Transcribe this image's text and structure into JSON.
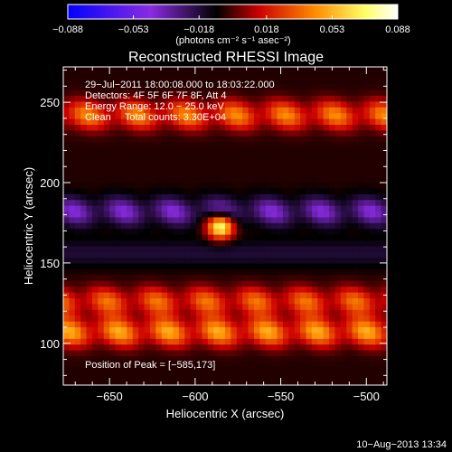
{
  "chart_data": {
    "type": "heatmap",
    "title": "Reconstructed RHESSI Image",
    "xlabel": "Heliocentric X (arcsec)",
    "ylabel": "Heliocentric Y (arcsec)",
    "xlim": [
      -677,
      -488
    ],
    "ylim": [
      74,
      272
    ],
    "xticks": [
      -650,
      -600,
      -550,
      -500
    ],
    "yticks": [
      100,
      150,
      200,
      250
    ],
    "xtick_labels": [
      "−650",
      "−600",
      "−550",
      "−500"
    ],
    "ytick_labels": [
      "100",
      "150",
      "200",
      "250"
    ],
    "colorbar": {
      "range": [
        -0.088,
        0.088
      ],
      "ticks": [
        -0.088,
        -0.053,
        -0.018,
        0.018,
        0.053,
        0.088
      ],
      "tick_labels": [
        "−0.088",
        "−0.053",
        "−0.018",
        "0.018",
        "0.053",
        "0.088"
      ],
      "units": "(photons cm⁻² s⁻¹ asec⁻²)",
      "colors": [
        "#0000ff",
        "#8a2be2",
        "#000000",
        "#cc0000",
        "#ff8c00",
        "#ffff66",
        "#ffffff"
      ]
    },
    "annotations": [
      "29−Jul−2011 18:00:08.000 to 18:03:22.000",
      "Detectors: 4F 5F 6F 7F 8F, Att 4",
      "Energy Range: 12.0 − 25.0 keV",
      "Clean     Total counts: 3.30E+04"
    ],
    "peak_label": "Position of Peak = [−585,173]",
    "peak": {
      "x": -585,
      "y": 173,
      "value": 0.088
    },
    "sources": [
      {
        "kind": "band",
        "y": 242,
        "amplitude": 0.045,
        "stripes": true
      },
      {
        "kind": "band",
        "y": 107,
        "amplitude": 0.052,
        "stripes": true
      },
      {
        "kind": "band",
        "y": 126,
        "amplitude": 0.04,
        "stripes": true
      },
      {
        "kind": "band",
        "y": 182,
        "amplitude": -0.035,
        "stripes": true
      },
      {
        "kind": "peak",
        "x": -585,
        "y": 173,
        "amplitude": 0.088
      }
    ]
  },
  "footer": {
    "date": "10−Aug−2013 13:34"
  }
}
